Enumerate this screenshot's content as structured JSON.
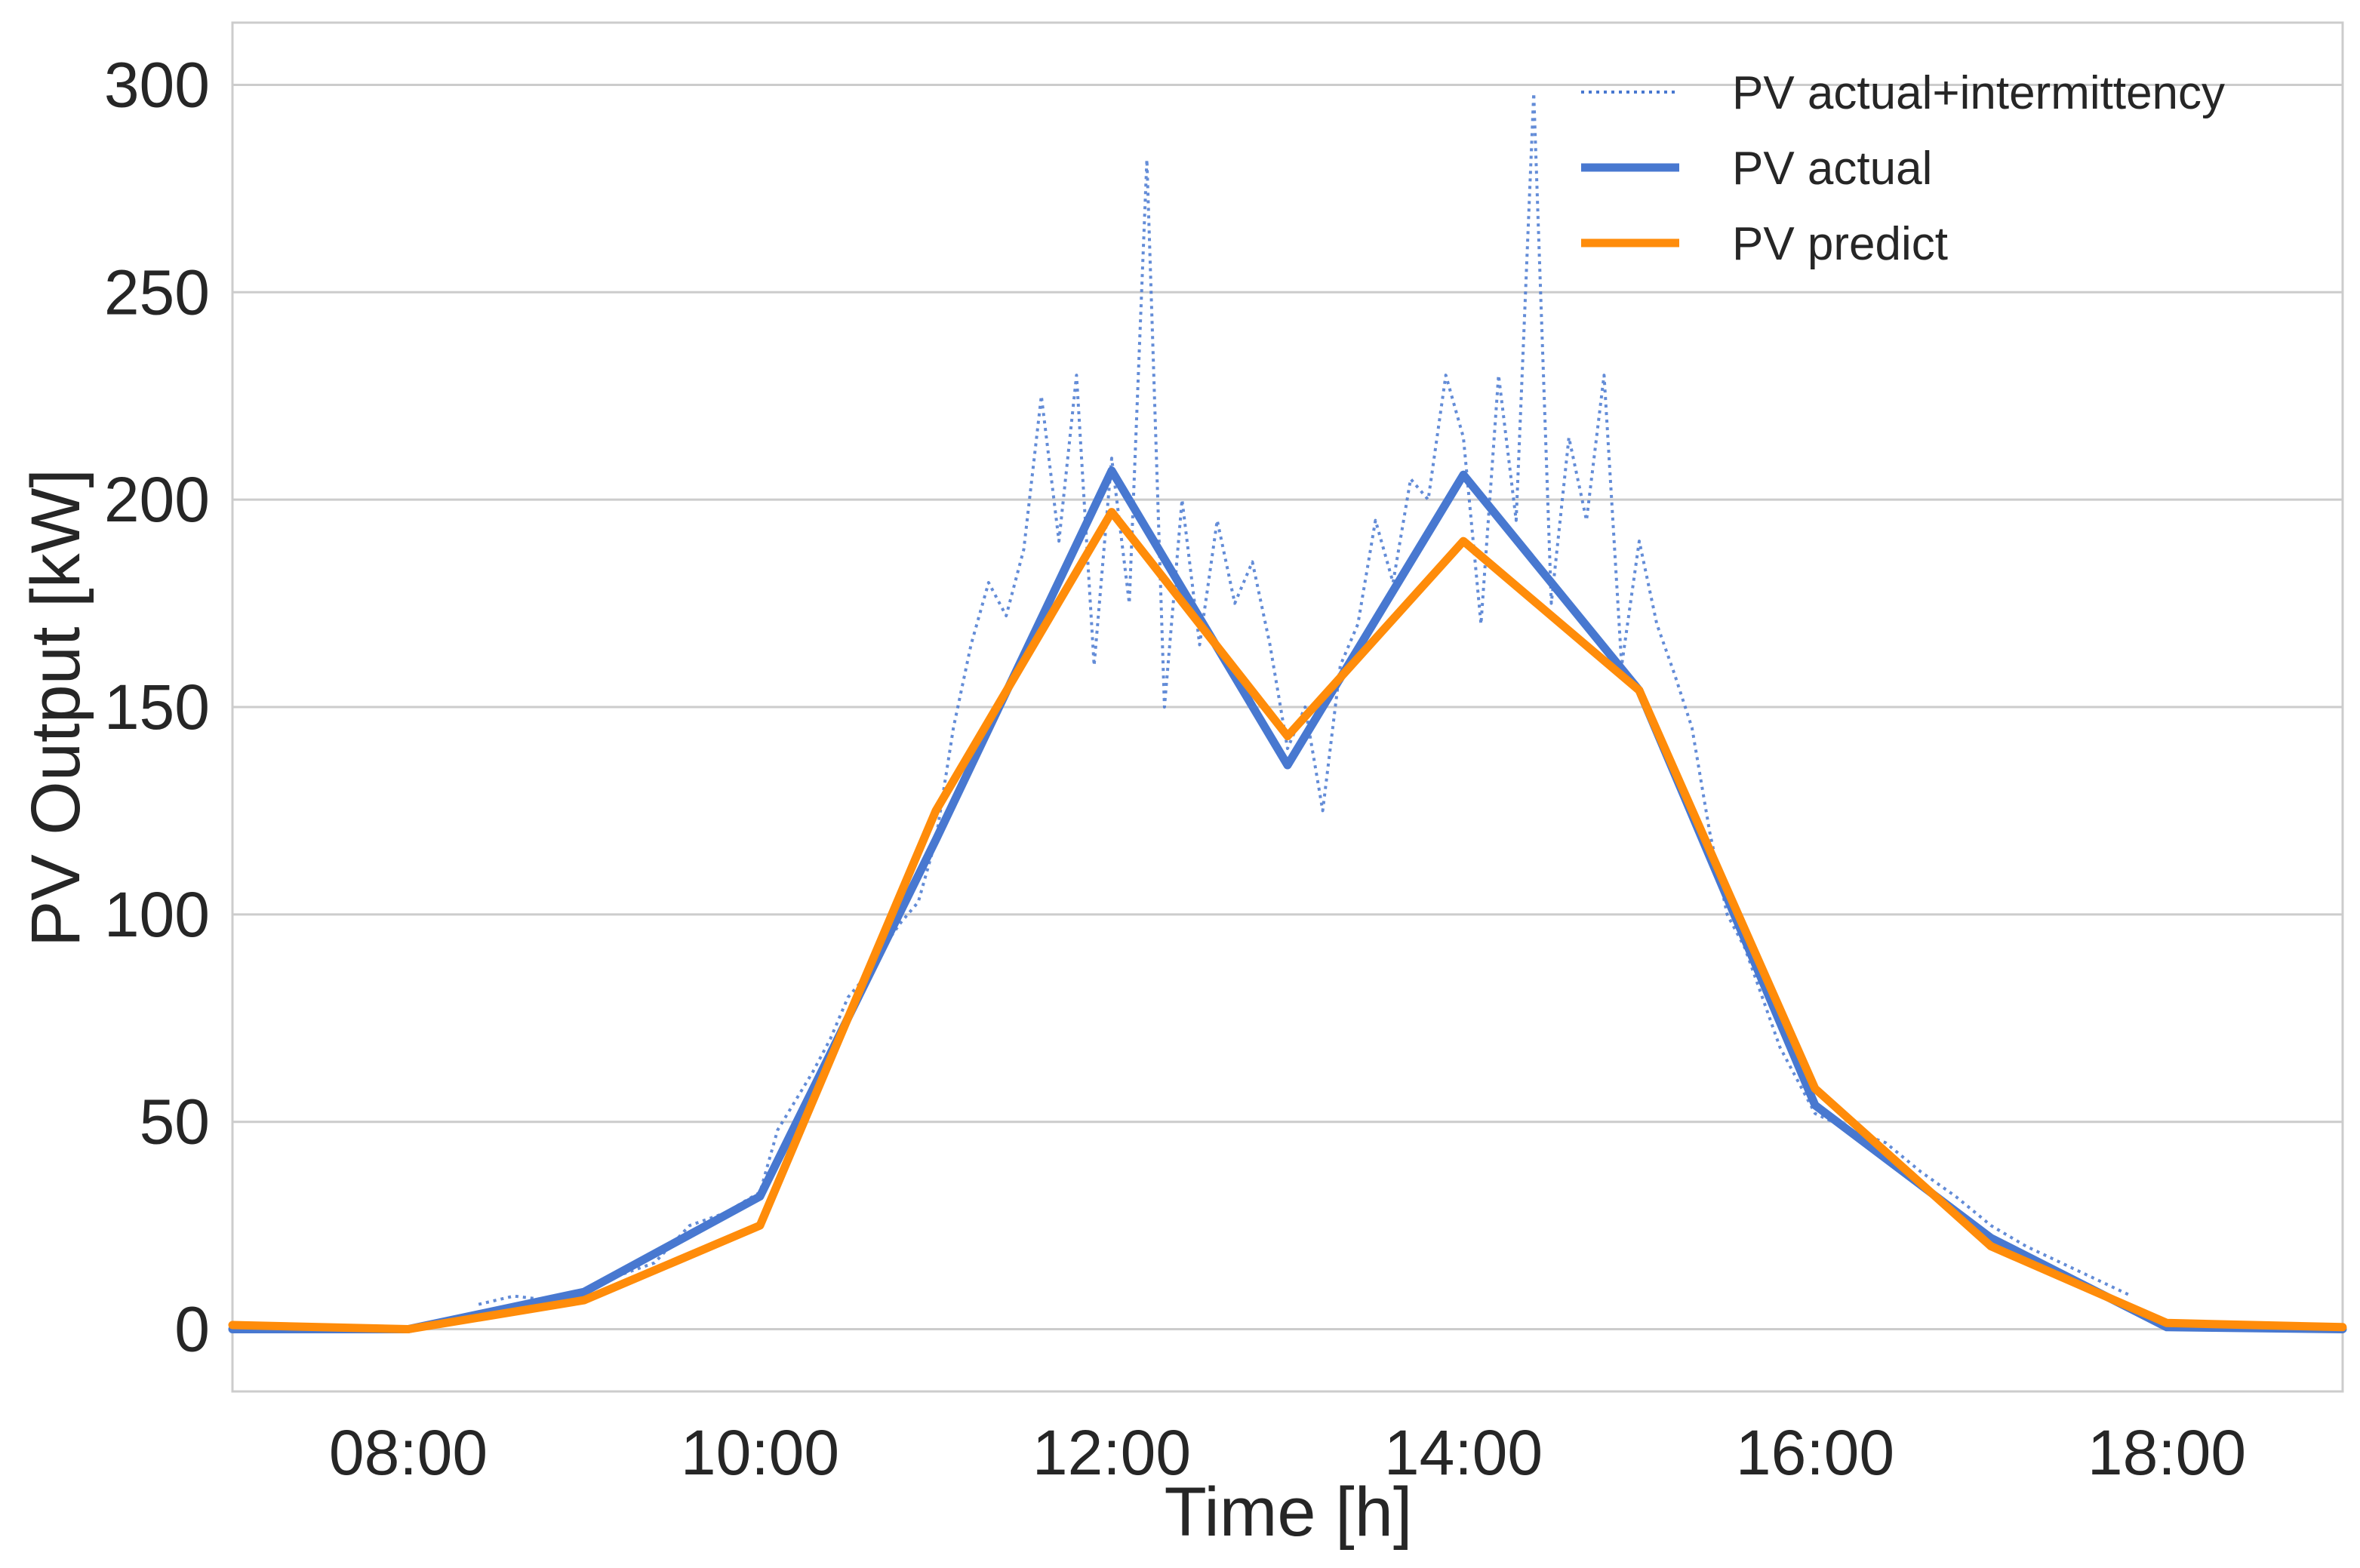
{
  "colors": {
    "actual": "#4878d0",
    "predict": "#ff8c0a",
    "intermittency": "#4878d0",
    "grid": "#cccccc",
    "frame": "#cccccc",
    "text": "#262626"
  },
  "chart_data": {
    "type": "line",
    "title": "",
    "xlabel": "Time [h]",
    "ylabel": "PV Output [kW]",
    "xlim": [
      7,
      19
    ],
    "ylim": [
      -15,
      315
    ],
    "x_ticks": [
      8,
      10,
      12,
      14,
      16,
      18
    ],
    "x_tick_labels": [
      "08:00",
      "10:00",
      "12:00",
      "14:00",
      "16:00",
      "18:00"
    ],
    "y_ticks": [
      0,
      50,
      100,
      150,
      200,
      250,
      300
    ],
    "y_tick_labels": [
      "0",
      "50",
      "100",
      "150",
      "200",
      "250",
      "300"
    ],
    "grid": "horizontal",
    "legend_position": "top-right",
    "series": [
      {
        "name": "PV actual+intermittency",
        "style": "dotted",
        "color_key": "intermittency",
        "x": [
          8.4,
          8.6,
          8.8,
          9.0,
          9.2,
          9.4,
          9.6,
          9.8,
          10.0,
          10.1,
          10.2,
          10.3,
          10.4,
          10.5,
          10.6,
          10.7,
          10.8,
          10.9,
          11.0,
          11.1,
          11.2,
          11.3,
          11.4,
          11.5,
          11.6,
          11.7,
          11.8,
          11.9,
          12.0,
          12.1,
          12.2,
          12.3,
          12.4,
          12.5,
          12.6,
          12.7,
          12.8,
          12.9,
          13.0,
          13.1,
          13.2,
          13.3,
          13.4,
          13.5,
          13.6,
          13.7,
          13.8,
          13.9,
          14.0,
          14.1,
          14.2,
          14.3,
          14.4,
          14.5,
          14.6,
          14.7,
          14.8,
          14.9,
          15.0,
          15.1,
          15.2,
          15.3,
          15.4,
          15.5,
          15.6,
          15.7,
          15.8,
          15.9,
          16.0,
          16.2,
          16.4,
          16.6,
          16.8,
          17.0,
          17.2,
          17.4,
          17.6,
          17.8
        ],
        "y": [
          6,
          8,
          7,
          9,
          13,
          16,
          25,
          28,
          33,
          48,
          55,
          62,
          70,
          80,
          85,
          92,
          98,
          103,
          118,
          145,
          165,
          180,
          172,
          188,
          225,
          190,
          230,
          160,
          210,
          175,
          282,
          150,
          200,
          165,
          195,
          175,
          185,
          165,
          140,
          150,
          125,
          160,
          170,
          195,
          180,
          205,
          200,
          230,
          215,
          170,
          230,
          195,
          298,
          175,
          215,
          195,
          230,
          160,
          190,
          170,
          158,
          145,
          120,
          100,
          92,
          80,
          68,
          60,
          52,
          48,
          45,
          38,
          32,
          25,
          20,
          16,
          12,
          8
        ]
      },
      {
        "name": "PV actual",
        "style": "solid",
        "color_key": "actual",
        "x": [
          7,
          8,
          9,
          10,
          11,
          12,
          13,
          14,
          15,
          16,
          17,
          18,
          19
        ],
        "y": [
          0,
          0,
          9,
          32,
          118,
          207,
          136,
          206,
          154,
          54,
          22,
          0.5,
          0
        ]
      },
      {
        "name": "PV predict",
        "style": "solid",
        "color_key": "predict",
        "x": [
          7,
          8,
          9,
          10,
          11,
          12,
          13,
          14,
          15,
          16,
          17,
          18,
          19
        ],
        "y": [
          1,
          0,
          7,
          25,
          125,
          197,
          143,
          190,
          154,
          58,
          20,
          1.5,
          0.5
        ]
      }
    ]
  }
}
